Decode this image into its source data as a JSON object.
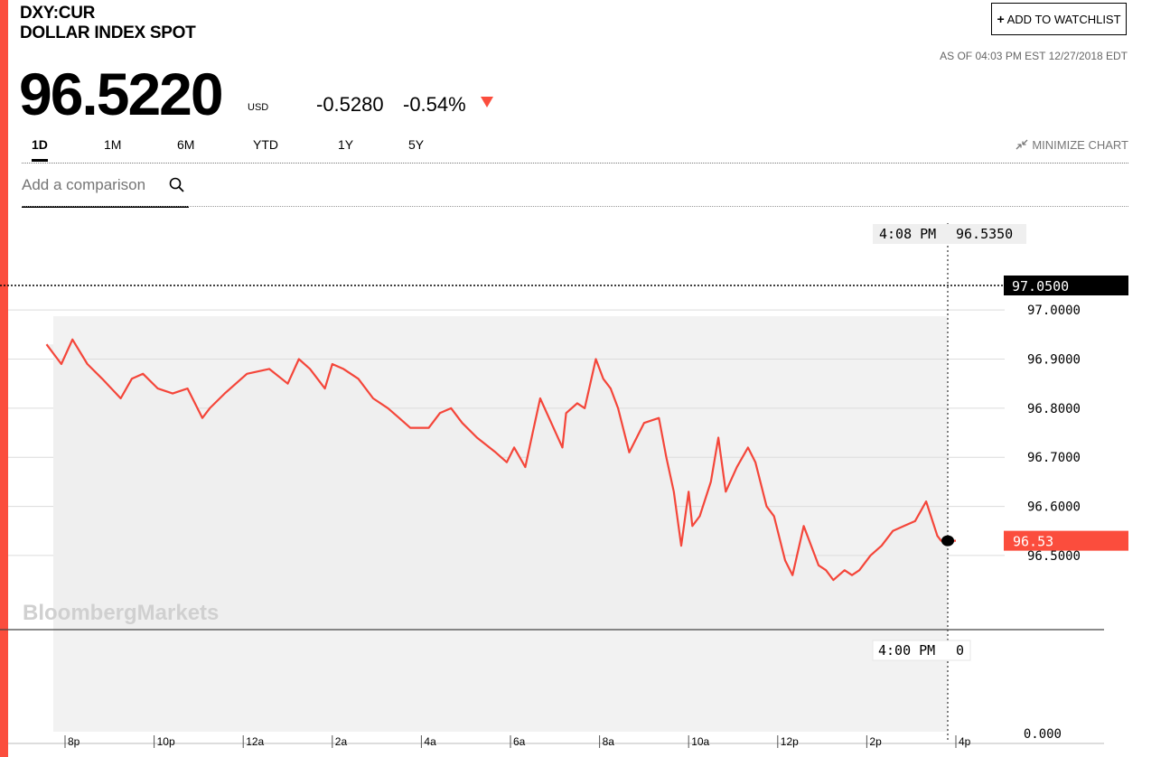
{
  "header": {
    "ticker": "DXY:CUR",
    "name": "DOLLAR INDEX SPOT",
    "watchlist_label": "ADD TO WATCHLIST",
    "as_of": "AS OF 04:03 PM EST 12/27/2018 EDT",
    "price": "96.5220",
    "currency": "USD",
    "change": "-0.5280",
    "change_pct": "-0.54%"
  },
  "tabs": [
    "1D",
    "1M",
    "6M",
    "YTD",
    "1Y",
    "5Y"
  ],
  "minimize_label": "MINIMIZE CHART",
  "compare_placeholder": "Add a comparison",
  "colors": {
    "accent": "#fb4d3d",
    "line": "#f4463a"
  },
  "chart_data": {
    "type": "line",
    "watermark": "BloombergMarkets",
    "x_tick_labels": [
      "8p",
      "10p",
      "12a",
      "2a",
      "4a",
      "6a",
      "8a",
      "10a",
      "12p",
      "2p",
      "4p"
    ],
    "y_tick_labels": [
      "97.0000",
      "96.9000",
      "96.8000",
      "96.7000",
      "96.6000",
      "96.5000"
    ],
    "y_axis_bottom_label": "0.000",
    "yrange": [
      96.42,
      97.05
    ],
    "high_label": "97.0500",
    "last_label": "96.53",
    "crosshair_time": "4:08 PM",
    "crosshair_value": "96.5350",
    "volume_time": "4:00 PM",
    "volume_value": "0",
    "series": [
      {
        "x": [
          "7:35p",
          "7:55p",
          "8:10p",
          "8:30p",
          "8:50p",
          "9:15p",
          "9:30p",
          "9:45p",
          "10:05p",
          "10:25p",
          "10:45p",
          "11:05p",
          "11:15p",
          "11:35p",
          "12:05a",
          "12:35a",
          "1:00a",
          "1:15a",
          "1:30a",
          "1:50a",
          "2:00a",
          "2:15a",
          "2:35a",
          "2:55a",
          "3:15a",
          "3:30a",
          "3:45a",
          "4:10a",
          "4:25a",
          "4:40a",
          "4:55a",
          "5:15a",
          "5:40a",
          "5:55a",
          "6:05a",
          "6:20a",
          "6:30a",
          "6:40a",
          "6:55a",
          "7:10a",
          "7:15a",
          "7:30a",
          "7:40a",
          "7:55a",
          "8:05a",
          "8:15a",
          "8:25a",
          "8:40a",
          "8:50a",
          "9:00a",
          "9:20a",
          "9:30a",
          "9:40a",
          "9:50a",
          "10:00a",
          "10:05a",
          "10:15a",
          "10:30a",
          "10:40a",
          "10:50a",
          "11:05a",
          "11:20a",
          "11:30a",
          "11:45a",
          "11:55a",
          "12:10p",
          "12:20p",
          "12:35p",
          "12:50p",
          "12:55p",
          "1:05p",
          "1:15p",
          "1:30p",
          "1:40p",
          "1:50p",
          "2:05p",
          "2:20p",
          "2:35p",
          "2:50p",
          "3:05p",
          "3:20p",
          "3:35p",
          "3:40p",
          "3:50p",
          "4:00p"
        ],
        "y": [
          96.93,
          96.89,
          96.94,
          96.89,
          96.86,
          96.82,
          96.86,
          96.87,
          96.84,
          96.83,
          96.84,
          96.78,
          96.8,
          96.83,
          96.87,
          96.88,
          96.85,
          96.9,
          96.88,
          96.84,
          96.89,
          96.88,
          96.86,
          96.82,
          96.8,
          96.78,
          96.76,
          96.76,
          96.79,
          96.8,
          96.77,
          96.74,
          96.71,
          96.69,
          96.72,
          96.68,
          96.75,
          96.82,
          96.77,
          96.72,
          96.79,
          96.81,
          96.8,
          96.9,
          96.86,
          96.84,
          96.8,
          96.71,
          96.74,
          96.77,
          96.78,
          96.7,
          96.63,
          96.52,
          96.63,
          96.56,
          96.58,
          96.65,
          96.74,
          96.63,
          96.68,
          96.72,
          96.69,
          96.6,
          96.58,
          96.49,
          96.46,
          96.56,
          96.5,
          96.48,
          96.47,
          96.45,
          96.47,
          96.46,
          96.47,
          96.5,
          96.52,
          96.55,
          96.56,
          96.57,
          96.61,
          96.54,
          96.53,
          96.53,
          96.53
        ]
      }
    ]
  }
}
